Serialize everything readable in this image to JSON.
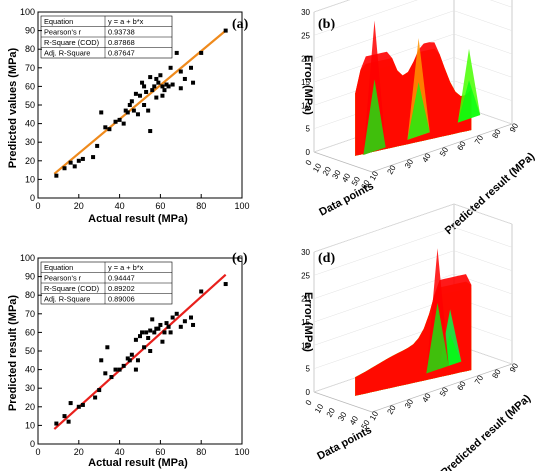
{
  "chart_data": [
    {
      "id": "a",
      "panel_label": "(a)",
      "type": "scatter",
      "xlabel": "Actual result (MPa)",
      "ylabel": "Predicted values (MPa)",
      "xlim": [
        0,
        100
      ],
      "ylim": [
        0,
        100
      ],
      "xticks": [
        0,
        20,
        40,
        60,
        80,
        100
      ],
      "yticks": [
        0,
        10,
        20,
        30,
        40,
        50,
        60,
        70,
        80,
        90,
        100
      ],
      "grid": false,
      "fit_line": {
        "color": "#ef8a1c",
        "from": [
          8,
          13
        ],
        "to": [
          92,
          90
        ]
      },
      "stats_table": {
        "placement": "top-left",
        "rows": [
          [
            "Equation",
            "y = a + b*x"
          ],
          [
            "Pearson's r",
            "0.93738"
          ],
          [
            "R-Square (COD)",
            "0.87868"
          ],
          [
            "Adj. R-Square",
            "0.87647"
          ]
        ]
      },
      "points": [
        [
          9,
          12
        ],
        [
          13,
          16
        ],
        [
          16,
          19
        ],
        [
          18,
          17
        ],
        [
          20,
          20
        ],
        [
          22,
          21
        ],
        [
          27,
          22
        ],
        [
          29,
          28
        ],
        [
          31,
          46
        ],
        [
          33,
          38
        ],
        [
          35,
          37
        ],
        [
          38,
          41
        ],
        [
          40,
          42
        ],
        [
          42,
          40
        ],
        [
          43,
          47
        ],
        [
          44,
          46
        ],
        [
          45,
          50
        ],
        [
          46,
          52
        ],
        [
          47,
          47
        ],
        [
          48,
          56
        ],
        [
          49,
          45
        ],
        [
          50,
          55
        ],
        [
          51,
          62
        ],
        [
          52,
          60
        ],
        [
          52,
          50
        ],
        [
          53,
          57
        ],
        [
          54,
          47
        ],
        [
          55,
          65
        ],
        [
          55,
          36
        ],
        [
          56,
          58
        ],
        [
          57,
          60
        ],
        [
          58,
          64
        ],
        [
          58,
          54
        ],
        [
          59,
          62
        ],
        [
          60,
          66
        ],
        [
          61,
          55
        ],
        [
          61,
          60
        ],
        [
          62,
          58
        ],
        [
          63,
          61
        ],
        [
          64,
          60
        ],
        [
          65,
          70
        ],
        [
          66,
          61
        ],
        [
          68,
          78
        ],
        [
          70,
          68
        ],
        [
          70,
          59
        ],
        [
          72,
          64
        ],
        [
          75,
          70
        ],
        [
          76,
          62
        ],
        [
          80,
          78
        ],
        [
          92,
          90
        ]
      ]
    },
    {
      "id": "b",
      "panel_label": "(b)",
      "type": "surface3d",
      "zlabel": "Error (MPa)",
      "xlabel": "Data points",
      "ylabel": "Predicted result (MPa)",
      "zticks": [
        0,
        5,
        10,
        15,
        20,
        25,
        30
      ],
      "xticks": [
        0,
        10,
        20,
        30,
        40,
        50,
        60
      ],
      "yticks": [
        10,
        20,
        30,
        40,
        50,
        60,
        70,
        80,
        90
      ],
      "zlim": [
        0,
        30
      ],
      "colormap": "rainbow",
      "peaks": [
        [
          1.0,
          9
        ],
        [
          0.25,
          22
        ],
        [
          0.6,
          15
        ]
      ]
    },
    {
      "id": "c",
      "panel_label": "(c)",
      "type": "scatter",
      "xlabel": "Actual result (MPa)",
      "ylabel": "Predicted result (MPa)",
      "xlim": [
        0,
        100
      ],
      "ylim": [
        0,
        100
      ],
      "xticks": [
        0,
        20,
        40,
        60,
        80,
        100
      ],
      "yticks": [
        0,
        10,
        20,
        30,
        40,
        50,
        60,
        70,
        80,
        90,
        100
      ],
      "grid": false,
      "fit_line": {
        "color": "#e8201c",
        "from": [
          8,
          8
        ],
        "to": [
          92,
          91
        ]
      },
      "stats_table": {
        "placement": "top-left",
        "rows": [
          [
            "Equation",
            "y = a + b*x"
          ],
          [
            "Pearson's r",
            "0.94447"
          ],
          [
            "R-Square (COD)",
            "0.89202"
          ],
          [
            "Adj. R-Square",
            "0.89006"
          ]
        ]
      },
      "points": [
        [
          9,
          11
        ],
        [
          13,
          15
        ],
        [
          15,
          12
        ],
        [
          16,
          22
        ],
        [
          20,
          20
        ],
        [
          22,
          21
        ],
        [
          28,
          25
        ],
        [
          30,
          29
        ],
        [
          31,
          45
        ],
        [
          33,
          38
        ],
        [
          34,
          52
        ],
        [
          36,
          36
        ],
        [
          38,
          40
        ],
        [
          40,
          40
        ],
        [
          42,
          42
        ],
        [
          44,
          46
        ],
        [
          45,
          45
        ],
        [
          46,
          48
        ],
        [
          48,
          56
        ],
        [
          48,
          40
        ],
        [
          49,
          45
        ],
        [
          50,
          58
        ],
        [
          51,
          60
        ],
        [
          52,
          52
        ],
        [
          53,
          60
        ],
        [
          54,
          57
        ],
        [
          55,
          50
        ],
        [
          55,
          61
        ],
        [
          56,
          67
        ],
        [
          57,
          60
        ],
        [
          58,
          62
        ],
        [
          59,
          62
        ],
        [
          60,
          64
        ],
        [
          61,
          55
        ],
        [
          62,
          60
        ],
        [
          63,
          65
        ],
        [
          64,
          63
        ],
        [
          65,
          60
        ],
        [
          66,
          68
        ],
        [
          68,
          70
        ],
        [
          70,
          63
        ],
        [
          72,
          66
        ],
        [
          75,
          68
        ],
        [
          76,
          64
        ],
        [
          80,
          82
        ],
        [
          92,
          86
        ]
      ]
    },
    {
      "id": "d",
      "panel_label": "(d)",
      "type": "surface3d",
      "zlabel": "Error (MPa)",
      "xlabel": "Data points",
      "ylabel": "Predicted result (MPa)",
      "zticks": [
        0,
        5,
        10,
        15,
        20,
        25,
        30
      ],
      "xticks": [
        0,
        10,
        20,
        30,
        40,
        50
      ],
      "yticks": [
        10,
        20,
        30,
        40,
        50,
        60,
        70,
        80,
        90
      ],
      "zlim": [
        0,
        30
      ],
      "colormap": "rainbow",
      "peaks": [
        [
          0.85,
          6
        ],
        [
          0.75,
          20
        ]
      ]
    }
  ]
}
